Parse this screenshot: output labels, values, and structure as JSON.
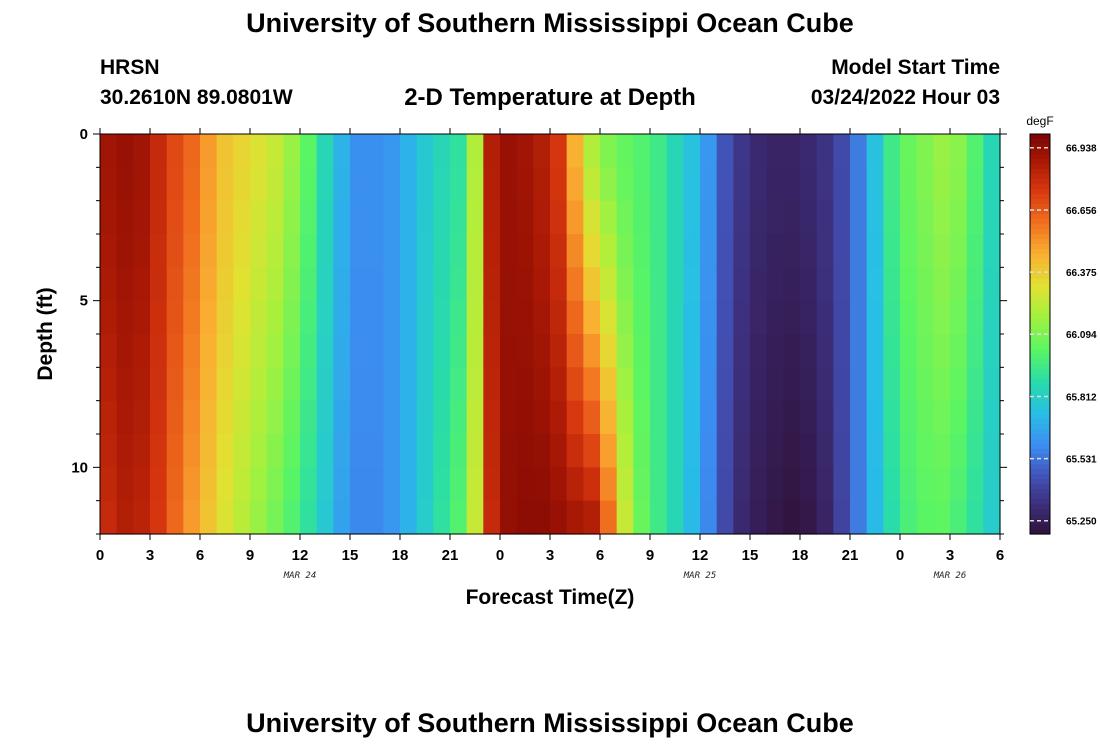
{
  "header": {
    "title": "University of Southern Mississippi Ocean Cube",
    "station": "HRSN",
    "coords": "30.2610N  89.0801W",
    "subtitle": "2-D Temperature at Depth",
    "model_start_label": "Model Start Time",
    "model_start_value": "03/24/2022 Hour 03"
  },
  "footer": {
    "title": "University of Southern Mississippi Ocean Cube"
  },
  "chart_data": {
    "type": "heatmap",
    "xlabel": "Forecast Time(Z)",
    "ylabel": "Depth (ft)",
    "x_tick_labels": [
      "0",
      "3",
      "6",
      "9",
      "12",
      "15",
      "18",
      "21",
      "0",
      "3",
      "6",
      "9",
      "12",
      "15",
      "18",
      "21",
      "0",
      "3",
      "6"
    ],
    "x_hours_range": [
      0,
      54
    ],
    "date_labels": [
      {
        "label": "MAR 24",
        "hour": 12
      },
      {
        "label": "MAR 25",
        "hour": 36
      },
      {
        "label": "MAR 26",
        "hour": 51
      }
    ],
    "y_tick_labels": [
      "0",
      "5",
      "10"
    ],
    "y_ticks": [
      0,
      5,
      10
    ],
    "ylim": [
      0,
      12
    ],
    "y_inverted": true,
    "colorbar": {
      "units": "degF",
      "tick_labels": [
        "66.938",
        "66.656",
        "66.375",
        "66.094",
        "65.812",
        "65.531",
        "65.250"
      ],
      "range": [
        65.19,
        67.0
      ]
    },
    "time_series_shallow_degF": [
      66.9,
      66.92,
      66.9,
      66.8,
      66.7,
      66.62,
      66.5,
      66.4,
      66.35,
      66.3,
      66.25,
      66.15,
      66.02,
      65.85,
      65.7,
      65.6,
      65.6,
      65.62,
      65.7,
      65.78,
      65.85,
      65.9,
      66.2,
      66.85,
      66.92,
      66.9,
      66.85,
      66.75,
      66.45,
      66.2,
      66.1,
      66.04,
      66.0,
      65.95,
      65.85,
      65.75,
      65.62,
      65.45,
      65.35,
      65.3,
      65.28,
      65.28,
      65.3,
      65.34,
      65.42,
      65.55,
      65.75,
      65.95,
      66.05,
      66.1,
      66.15,
      66.12,
      66.0,
      65.85,
      65.65
    ],
    "time_series_bottom_degF": [
      66.8,
      66.85,
      66.83,
      66.75,
      66.62,
      66.5,
      66.4,
      66.3,
      66.22,
      66.15,
      66.08,
      66.0,
      65.9,
      65.78,
      65.65,
      65.58,
      65.58,
      65.62,
      65.7,
      65.8,
      65.9,
      66.0,
      66.25,
      66.8,
      66.93,
      66.95,
      66.95,
      66.92,
      66.88,
      66.85,
      66.6,
      66.25,
      66.05,
      65.95,
      65.85,
      65.72,
      65.58,
      65.42,
      65.3,
      65.25,
      65.22,
      65.2,
      65.22,
      65.28,
      65.4,
      65.55,
      65.72,
      65.88,
      65.98,
      66.02,
      66.03,
      65.98,
      65.9,
      65.8,
      65.65
    ],
    "grid": false
  }
}
